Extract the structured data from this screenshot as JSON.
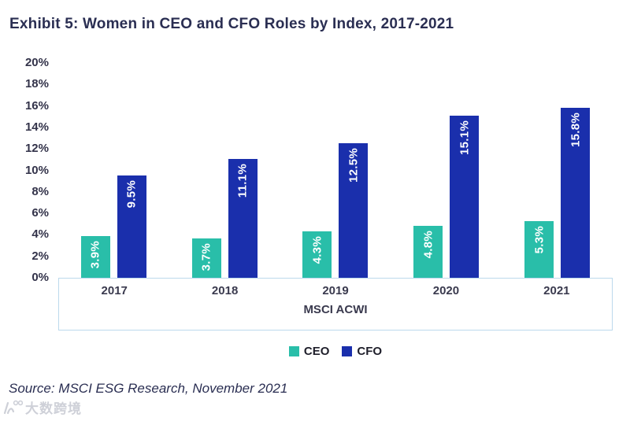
{
  "title": "Exhibit 5: Women in CEO and CFO Roles by Index, 2017-2021",
  "source": "Source: MSCI ESG Research, November 2021",
  "watermark": {
    "icon": "dashu-logo-icon",
    "text": "大数跨境"
  },
  "colors": {
    "ceo_bar": "#29BEA9",
    "cfo_bar": "#1A2FAC",
    "bar_value_label": "#FFFFFF",
    "title_text": "#2A2E52",
    "axis_text": "#33334A",
    "axis_box_border": "#BCD9EC",
    "watermark_gray": "#C9CCD4"
  },
  "chart_data": {
    "type": "bar",
    "categories": [
      "2017",
      "2018",
      "2019",
      "2020",
      "2021"
    ],
    "series": [
      {
        "name": "CEO",
        "color": "#29BEA9",
        "values": [
          3.9,
          3.7,
          4.3,
          4.8,
          5.3
        ],
        "data_labels": [
          "3.9%",
          "3.7%",
          "4.3%",
          "4.8%",
          "5.3%"
        ]
      },
      {
        "name": "CFO",
        "color": "#1A2FAC",
        "values": [
          9.5,
          11.1,
          12.5,
          15.1,
          15.8
        ],
        "data_labels": [
          "9.5%",
          "11.1%",
          "12.5%",
          "15.1%",
          "15.8%"
        ]
      }
    ],
    "title": "Exhibit 5: Women in CEO and CFO Roles by Index, 2017-2021",
    "xlabel": "MSCI ACWI",
    "ylabel": "",
    "ylim": [
      0,
      20
    ],
    "ytick_step": 2,
    "ytick_labels": [
      "20%",
      "18%",
      "16%",
      "14%",
      "12%",
      "10%",
      "8%",
      "6%",
      "4%",
      "2%",
      "0%"
    ],
    "grid": false,
    "legend_position": "bottom",
    "legend": [
      "CEO",
      "CFO"
    ],
    "data_label_orientation": "vertical-bottom-to-top"
  }
}
